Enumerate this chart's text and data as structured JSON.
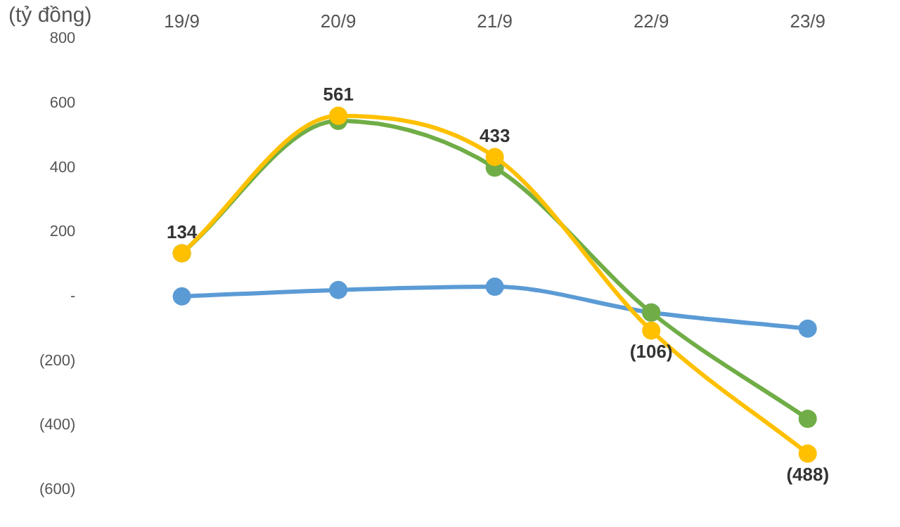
{
  "chart_data": {
    "type": "line",
    "ylabel": "(tỷ đồng)",
    "categories": [
      "19/9",
      "20/9",
      "21/9",
      "22/9",
      "23/9"
    ],
    "series": [
      {
        "color": "#5b9bd5",
        "values": [
          0,
          20,
          30,
          -50,
          -100
        ]
      },
      {
        "color": "#70ad47",
        "values": [
          134,
          545,
          400,
          -50,
          -380
        ]
      },
      {
        "color": "#ffc000",
        "values": [
          134,
          561,
          433,
          -106,
          -488
        ],
        "value_labels": [
          "134",
          "561",
          "433",
          "(106)",
          "(488)"
        ]
      }
    ],
    "ylim": [
      -600,
      800
    ],
    "yticks": [
      {
        "value": -600,
        "label": "(600)"
      },
      {
        "value": -400,
        "label": "(400)"
      },
      {
        "value": -200,
        "label": "(200)"
      },
      {
        "value": 0,
        "label": "-"
      },
      200,
      400,
      600,
      800
    ],
    "marker": "circle",
    "grid": false,
    "legend": false
  }
}
